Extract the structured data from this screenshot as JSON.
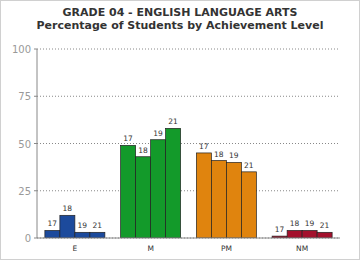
{
  "chart_data": {
    "type": "bar",
    "title": "GRADE 04 - ENGLISH LANGUAGE ARTS",
    "subtitle": "Percentage of Students by Achievement Level",
    "categories": [
      "E",
      "M",
      "PM",
      "NM"
    ],
    "colors": [
      "#1c4a9c",
      "#139a2a",
      "#e0840e",
      "#a3102c"
    ],
    "series": [
      {
        "name": "17",
        "values": [
          4,
          49,
          45,
          1
        ]
      },
      {
        "name": "18",
        "values": [
          12,
          43,
          41,
          4
        ]
      },
      {
        "name": "19",
        "values": [
          3,
          52,
          40,
          4
        ]
      },
      {
        "name": "21",
        "values": [
          3,
          58,
          35,
          3
        ]
      }
    ],
    "ylim": [
      0,
      100
    ],
    "yticks": [
      0,
      25,
      50,
      75,
      100
    ],
    "grid": true
  }
}
